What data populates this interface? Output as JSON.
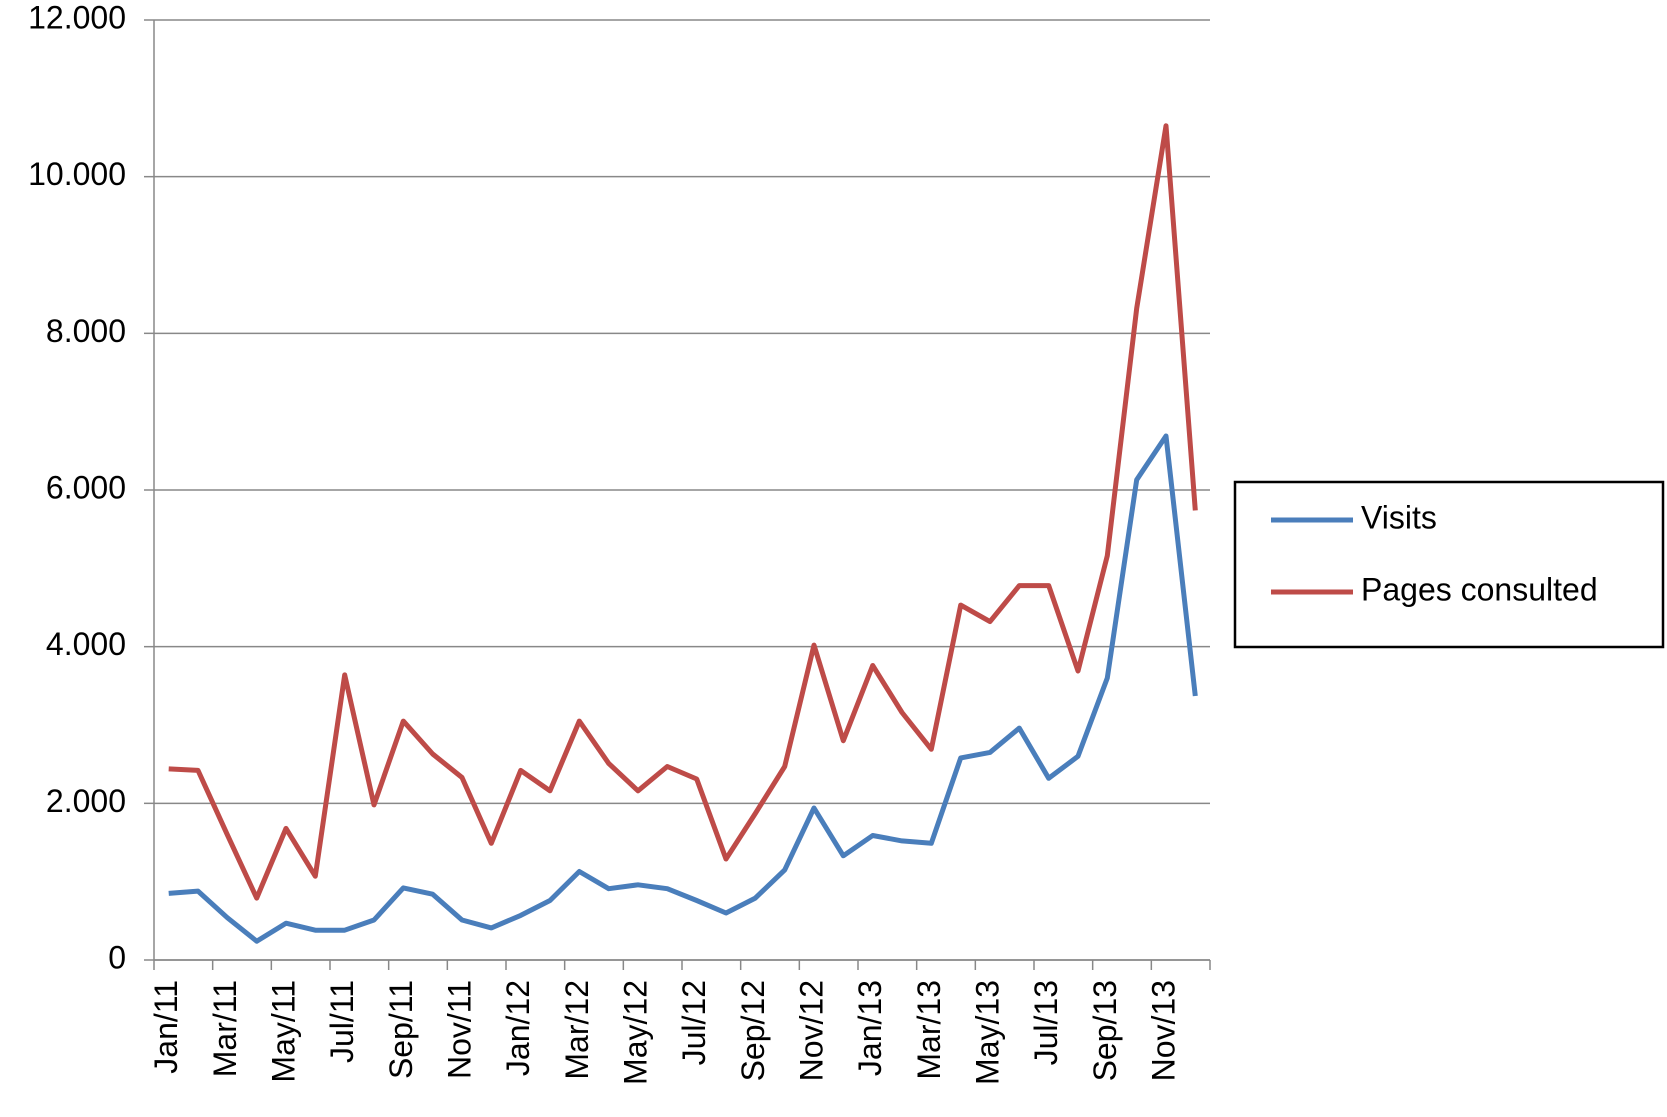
{
  "chart_data": {
    "type": "line",
    "categories": [
      "Jan/11",
      null,
      "Mar/11",
      null,
      "May/11",
      null,
      "Jul/11",
      null,
      "Sep/11",
      null,
      "Nov/11",
      null,
      "Jan/12",
      null,
      "Mar/12",
      null,
      "May/12",
      null,
      "Jul/12",
      null,
      "Sep/12",
      null,
      "Nov/12",
      null,
      "Jan/13",
      null,
      "Mar/13",
      null,
      "May/13",
      null,
      "Jul/13",
      null,
      "Sep/13",
      null,
      "Nov/13",
      null
    ],
    "series": [
      {
        "name": "Visits",
        "color": "#4a7ebb",
        "values": [
          850,
          880,
          540,
          240,
          470,
          380,
          380,
          510,
          920,
          840,
          510,
          410,
          570,
          760,
          1130,
          910,
          960,
          910,
          760,
          600,
          790,
          1150,
          1940,
          1330,
          1590,
          1520,
          1490,
          2580,
          2650,
          2960,
          2320,
          2600,
          3600,
          6130,
          6690,
          3370
        ]
      },
      {
        "name": "Pages consulted",
        "color": "#be4b48",
        "values": [
          2440,
          2420,
          1600,
          790,
          1680,
          1070,
          3640,
          1980,
          3050,
          2630,
          2330,
          1490,
          2420,
          2160,
          3050,
          2510,
          2160,
          2470,
          2310,
          1290,
          1870,
          2470,
          4020,
          2800,
          3760,
          3160,
          2690,
          4530,
          4320,
          4780,
          4780,
          3690,
          5160,
          8320,
          10650,
          5740
        ]
      }
    ],
    "ylim": [
      0,
      12000
    ],
    "yticks": [
      0,
      {
        "value": 2000,
        "label": "2.000"
      },
      {
        "value": 4000,
        "label": "4.000"
      },
      {
        "value": 6000,
        "label": "6.000"
      },
      {
        "value": 8000,
        "label": "8.000"
      },
      {
        "value": 10000,
        "label": "10.000"
      },
      {
        "value": 12000,
        "label": "12.000"
      }
    ],
    "grid": true,
    "legend": "right"
  }
}
